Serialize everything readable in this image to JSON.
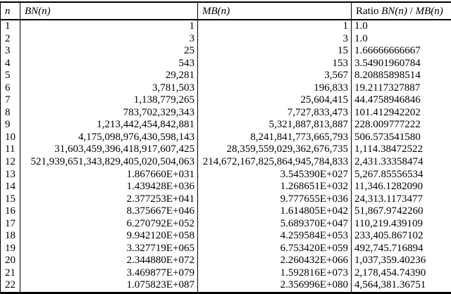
{
  "table": {
    "headers": [
      {
        "parts": [
          {
            "t": "n",
            "i": true
          }
        ]
      },
      {
        "parts": [
          {
            "t": "BN(n)",
            "i": true
          }
        ]
      },
      {
        "parts": [
          {
            "t": "MB(n)",
            "i": true
          }
        ]
      },
      {
        "parts": [
          {
            "t": "Ratio ",
            "i": false
          },
          {
            "t": "BN(n)",
            "i": true
          },
          {
            "t": " / ",
            "i": false
          },
          {
            "t": "MB(n)",
            "i": true
          }
        ]
      }
    ],
    "rows": [
      [
        "1",
        "1",
        "1",
        "1.0"
      ],
      [
        "2",
        "3",
        "3",
        "1.0"
      ],
      [
        "3",
        "25",
        "15",
        "1.66666666667"
      ],
      [
        "4",
        "543",
        "153",
        "3.54901960784"
      ],
      [
        "5",
        "29,281",
        "3,567",
        "8.20885898514"
      ],
      [
        "6",
        "3,781,503",
        "196,833",
        "19.2117327887"
      ],
      [
        "7",
        "1,138,779,265",
        "25,604,415",
        "44.4758946846"
      ],
      [
        "8",
        "783,702,329,343",
        "7,727,833,473",
        "101.412942202"
      ],
      [
        "9",
        "1,213,442,454,842,881",
        "5,321,887,813,887",
        "228.009777222"
      ],
      [
        "10",
        "4,175,098,976,430,598,143",
        "8,241,841,773,665,793",
        "506.573541580"
      ],
      [
        "11",
        "31,603,459,396,418,917,607,425",
        "28,359,559,029,362,676,735",
        "1,114.38472522"
      ],
      [
        "12",
        "521,939,651,343,829,405,020,504,063",
        "214,672,167,825,864,945,784,833",
        "2,431.33358474"
      ],
      [
        "13",
        "1.867660E+031",
        "3.545390E+027",
        "5,267.85556534"
      ],
      [
        "14",
        "1.439428E+036",
        "1.268651E+032",
        "11,346.1282090"
      ],
      [
        "15",
        "2.377253E+041",
        "9.777655E+036",
        "24,313.1173477"
      ],
      [
        "16",
        "8.375667E+046",
        "1.614805E+042",
        "51,867.9742260"
      ],
      [
        "17",
        "6.270792E+052",
        "5.689370E+047",
        "110,219.439109"
      ],
      [
        "18",
        "9.942120E+058",
        "4.259584E+053",
        "233,405.867102"
      ],
      [
        "19",
        "3.327719E+065",
        "6.753420E+059",
        "492,745.716894"
      ],
      [
        "20",
        "2.344880E+072",
        "2.260432E+066",
        "1,037,359.40236"
      ],
      [
        "21",
        "3.469877E+079",
        "1.592816E+073",
        "2,178,454.74390"
      ],
      [
        "22",
        "1.075823E+087",
        "2.356996E+080",
        "4,564,381.36751"
      ]
    ],
    "cell_names": [
      "cell-n",
      "cell-bn",
      "cell-mb",
      "cell-ratio"
    ]
  },
  "colors": {
    "text": "#000000",
    "border": "#000000",
    "background": "#ffffff"
  }
}
